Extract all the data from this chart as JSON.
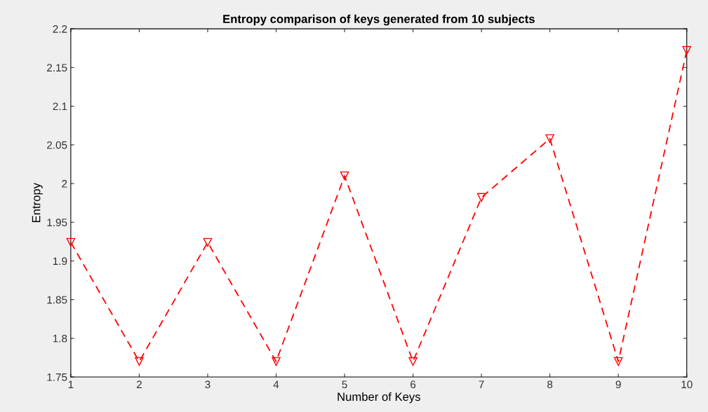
{
  "chart_data": {
    "type": "line",
    "title": "Entropy comparison of keys generated from 10 subjects",
    "xlabel": "Number of Keys",
    "ylabel": "Entropy",
    "x": [
      1,
      2,
      3,
      4,
      5,
      6,
      7,
      8,
      9,
      10
    ],
    "series": [
      {
        "color": "#ff0000",
        "values": [
          1.924,
          1.77,
          1.924,
          1.77,
          2.01,
          1.77,
          1.982,
          2.058,
          1.77,
          2.172
        ]
      }
    ],
    "xlim": [
      1,
      10
    ],
    "xticks": [
      1,
      2,
      3,
      4,
      5,
      6,
      7,
      8,
      9,
      10
    ],
    "ylim": [
      1.75,
      2.2
    ],
    "yticks": [
      1.75,
      1.8,
      1.85,
      1.9,
      1.95,
      2,
      2.05,
      2.1,
      2.15,
      2.2
    ],
    "marker": "triangle",
    "line_style": "dashed",
    "grid": false,
    "legend": false
  }
}
